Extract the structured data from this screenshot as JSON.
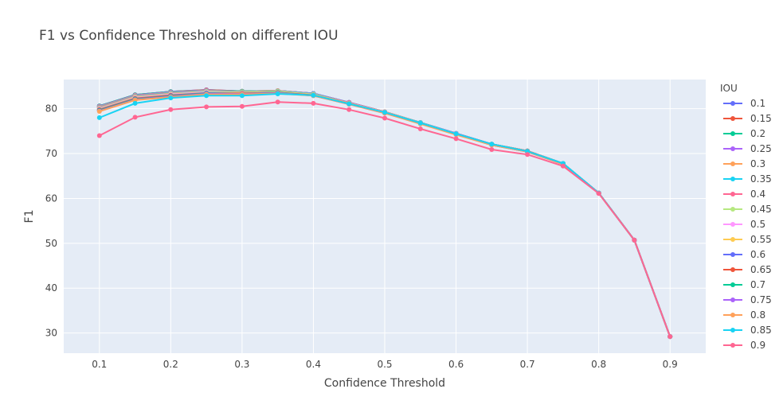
{
  "chart_data": {
    "type": "line",
    "title": "F1 vs Confidence Threshold on different IOU",
    "xlabel": "Confidence Threshold",
    "ylabel": "F1",
    "legend_title": "IOU",
    "legend_position": "right",
    "grid": true,
    "xlim": [
      0.05,
      0.95
    ],
    "ylim": [
      25.5,
      86.5
    ],
    "x_ticks": [
      "0.1",
      "0.2",
      "0.3",
      "0.4",
      "0.5",
      "0.6",
      "0.7",
      "0.8",
      "0.9"
    ],
    "y_ticks": [
      "30",
      "40",
      "50",
      "60",
      "70",
      "80"
    ],
    "x": [
      0.1,
      0.15,
      0.2,
      0.25,
      0.3,
      0.35,
      0.4,
      0.45,
      0.5,
      0.55,
      0.6,
      0.65,
      0.7,
      0.75,
      0.8,
      0.85,
      0.9
    ],
    "series": [
      {
        "name": "0.1",
        "color": "#636efa",
        "values": [
          80.6,
          83.1,
          83.8,
          84.2,
          83.9,
          84.0,
          83.4,
          81.4,
          79.3,
          76.9,
          74.5,
          72.1,
          70.6,
          67.8,
          61.2,
          50.7,
          29.2
        ]
      },
      {
        "name": "0.15",
        "color": "#ef553b",
        "values": [
          80.6,
          83.1,
          83.8,
          84.2,
          83.9,
          84.0,
          83.4,
          81.4,
          79.3,
          76.9,
          74.5,
          72.1,
          70.6,
          67.8,
          61.2,
          50.7,
          29.2
        ]
      },
      {
        "name": "0.2",
        "color": "#00cc96",
        "values": [
          80.6,
          83.1,
          83.8,
          84.1,
          83.9,
          84.0,
          83.4,
          81.4,
          79.3,
          76.9,
          74.5,
          72.1,
          70.6,
          67.8,
          61.2,
          50.7,
          29.2
        ]
      },
      {
        "name": "0.25",
        "color": "#ab63fa",
        "values": [
          80.5,
          83.0,
          83.7,
          84.1,
          83.8,
          84.0,
          83.4,
          81.4,
          79.3,
          76.9,
          74.5,
          72.1,
          70.6,
          67.8,
          61.2,
          50.7,
          29.2
        ]
      },
      {
        "name": "0.3",
        "color": "#ffa15a",
        "values": [
          80.4,
          82.9,
          83.6,
          84.0,
          83.8,
          84.0,
          83.3,
          81.3,
          79.3,
          76.9,
          74.4,
          72.1,
          70.6,
          67.8,
          61.2,
          50.7,
          29.2
        ]
      },
      {
        "name": "0.35",
        "color": "#19d3f3",
        "values": [
          80.3,
          82.8,
          83.5,
          83.9,
          83.7,
          83.9,
          83.3,
          81.3,
          79.2,
          76.9,
          74.4,
          72.1,
          70.5,
          67.8,
          61.2,
          50.7,
          29.2
        ]
      },
      {
        "name": "0.4",
        "color": "#ff6692",
        "values": [
          80.2,
          82.7,
          83.4,
          83.8,
          83.6,
          83.8,
          83.2,
          81.3,
          79.2,
          76.8,
          74.4,
          72.0,
          70.5,
          67.7,
          61.2,
          50.7,
          29.2
        ]
      },
      {
        "name": "0.45",
        "color": "#b6e880",
        "values": [
          80.1,
          82.6,
          83.3,
          83.8,
          83.6,
          83.8,
          83.2,
          81.2,
          79.2,
          76.8,
          74.4,
          72.0,
          70.5,
          67.7,
          61.2,
          50.7,
          29.2
        ]
      },
      {
        "name": "0.5",
        "color": "#ff97ff",
        "values": [
          80.0,
          82.5,
          83.2,
          83.7,
          83.5,
          83.7,
          83.1,
          81.2,
          79.2,
          76.8,
          74.4,
          72.0,
          70.5,
          67.7,
          61.2,
          50.7,
          29.2
        ]
      },
      {
        "name": "0.55",
        "color": "#fecb52",
        "values": [
          79.9,
          82.4,
          83.1,
          83.6,
          83.5,
          83.7,
          83.1,
          81.2,
          79.1,
          76.8,
          74.3,
          72.0,
          70.5,
          67.7,
          61.2,
          50.7,
          29.2
        ]
      },
      {
        "name": "0.6",
        "color": "#636efa",
        "values": [
          79.8,
          82.3,
          83.0,
          83.5,
          83.4,
          83.6,
          83.0,
          81.1,
          79.1,
          76.7,
          74.3,
          72.0,
          70.5,
          67.7,
          61.2,
          50.7,
          29.2
        ]
      },
      {
        "name": "0.65",
        "color": "#ef553b",
        "values": [
          79.7,
          82.2,
          82.9,
          83.4,
          83.4,
          83.6,
          83.0,
          81.1,
          79.1,
          76.7,
          74.3,
          72.0,
          70.5,
          67.7,
          61.2,
          50.7,
          29.2
        ]
      },
      {
        "name": "0.7",
        "color": "#00cc96",
        "values": [
          79.6,
          82.1,
          82.8,
          83.4,
          83.3,
          83.6,
          82.9,
          81.1,
          79.1,
          76.7,
          74.3,
          71.9,
          70.4,
          67.7,
          61.2,
          50.7,
          29.2
        ]
      },
      {
        "name": "0.75",
        "color": "#ab63fa",
        "values": [
          79.5,
          82.0,
          82.7,
          83.3,
          83.3,
          83.5,
          82.9,
          81.0,
          79.0,
          76.7,
          74.3,
          71.9,
          70.4,
          67.6,
          61.2,
          50.7,
          29.2
        ]
      },
      {
        "name": "0.8",
        "color": "#ffa15a",
        "values": [
          79.4,
          81.9,
          82.6,
          83.2,
          83.2,
          83.4,
          82.9,
          81.0,
          79.0,
          76.6,
          74.2,
          71.9,
          70.4,
          67.6,
          61.2,
          50.7,
          29.2
        ]
      },
      {
        "name": "0.85",
        "color": "#19d3f3",
        "values": [
          78.0,
          81.2,
          82.4,
          82.9,
          82.9,
          83.3,
          83.0,
          81.1,
          79.2,
          76.8,
          74.4,
          72.1,
          70.5,
          67.8,
          61.2,
          50.7,
          29.2
        ]
      },
      {
        "name": "0.9",
        "color": "#ff6692",
        "values": [
          74.0,
          78.1,
          79.8,
          80.4,
          80.5,
          81.5,
          81.2,
          79.8,
          77.9,
          75.5,
          73.3,
          70.9,
          69.8,
          67.2,
          61.1,
          50.7,
          29.2
        ]
      }
    ]
  }
}
